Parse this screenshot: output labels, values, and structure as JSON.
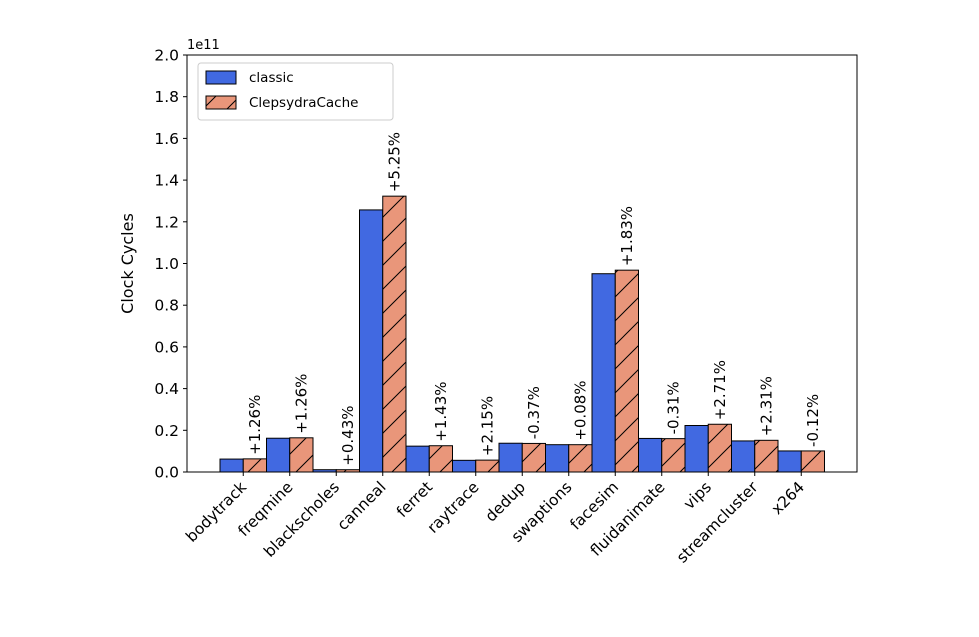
{
  "chart_data": {
    "type": "bar",
    "title": "",
    "xlabel": "",
    "ylabel": "Clock Cycles",
    "y_multiplier": "1e11",
    "ylim": [
      0,
      2.0
    ],
    "yticks": [
      "0.0",
      "0.2",
      "0.4",
      "0.6",
      "0.8",
      "1.0",
      "1.2",
      "1.4",
      "1.6",
      "1.8",
      "2.0"
    ],
    "grid": false,
    "legend_position": "top-left",
    "categories": [
      "bodytrack",
      "freqmine",
      "blackscholes",
      "canneal",
      "ferret",
      "raytrace",
      "dedup",
      "swaptions",
      "facesim",
      "fluidanimate",
      "vips",
      "streamcluster",
      "x264"
    ],
    "series": [
      {
        "name": "classic",
        "color": "#4169e1",
        "hatch": false,
        "values": [
          0.062,
          0.162,
          0.011,
          1.257,
          0.124,
          0.056,
          0.138,
          0.131,
          0.951,
          0.161,
          0.223,
          0.149,
          0.101
        ]
      },
      {
        "name": "ClepsydraCache",
        "color": "#e9967a",
        "hatch": true,
        "values": [
          0.063,
          0.164,
          0.011,
          1.323,
          0.126,
          0.057,
          0.137,
          0.131,
          0.968,
          0.16,
          0.229,
          0.152,
          0.101
        ]
      }
    ],
    "annotations": [
      "+1.26%",
      "+1.26%",
      "+0.43%",
      "+5.25%",
      "+1.43%",
      "+2.15%",
      "-0.37%",
      "+0.08%",
      "+1.83%",
      "-0.31%",
      "+2.71%",
      "+2.31%",
      "-0.12%"
    ]
  }
}
